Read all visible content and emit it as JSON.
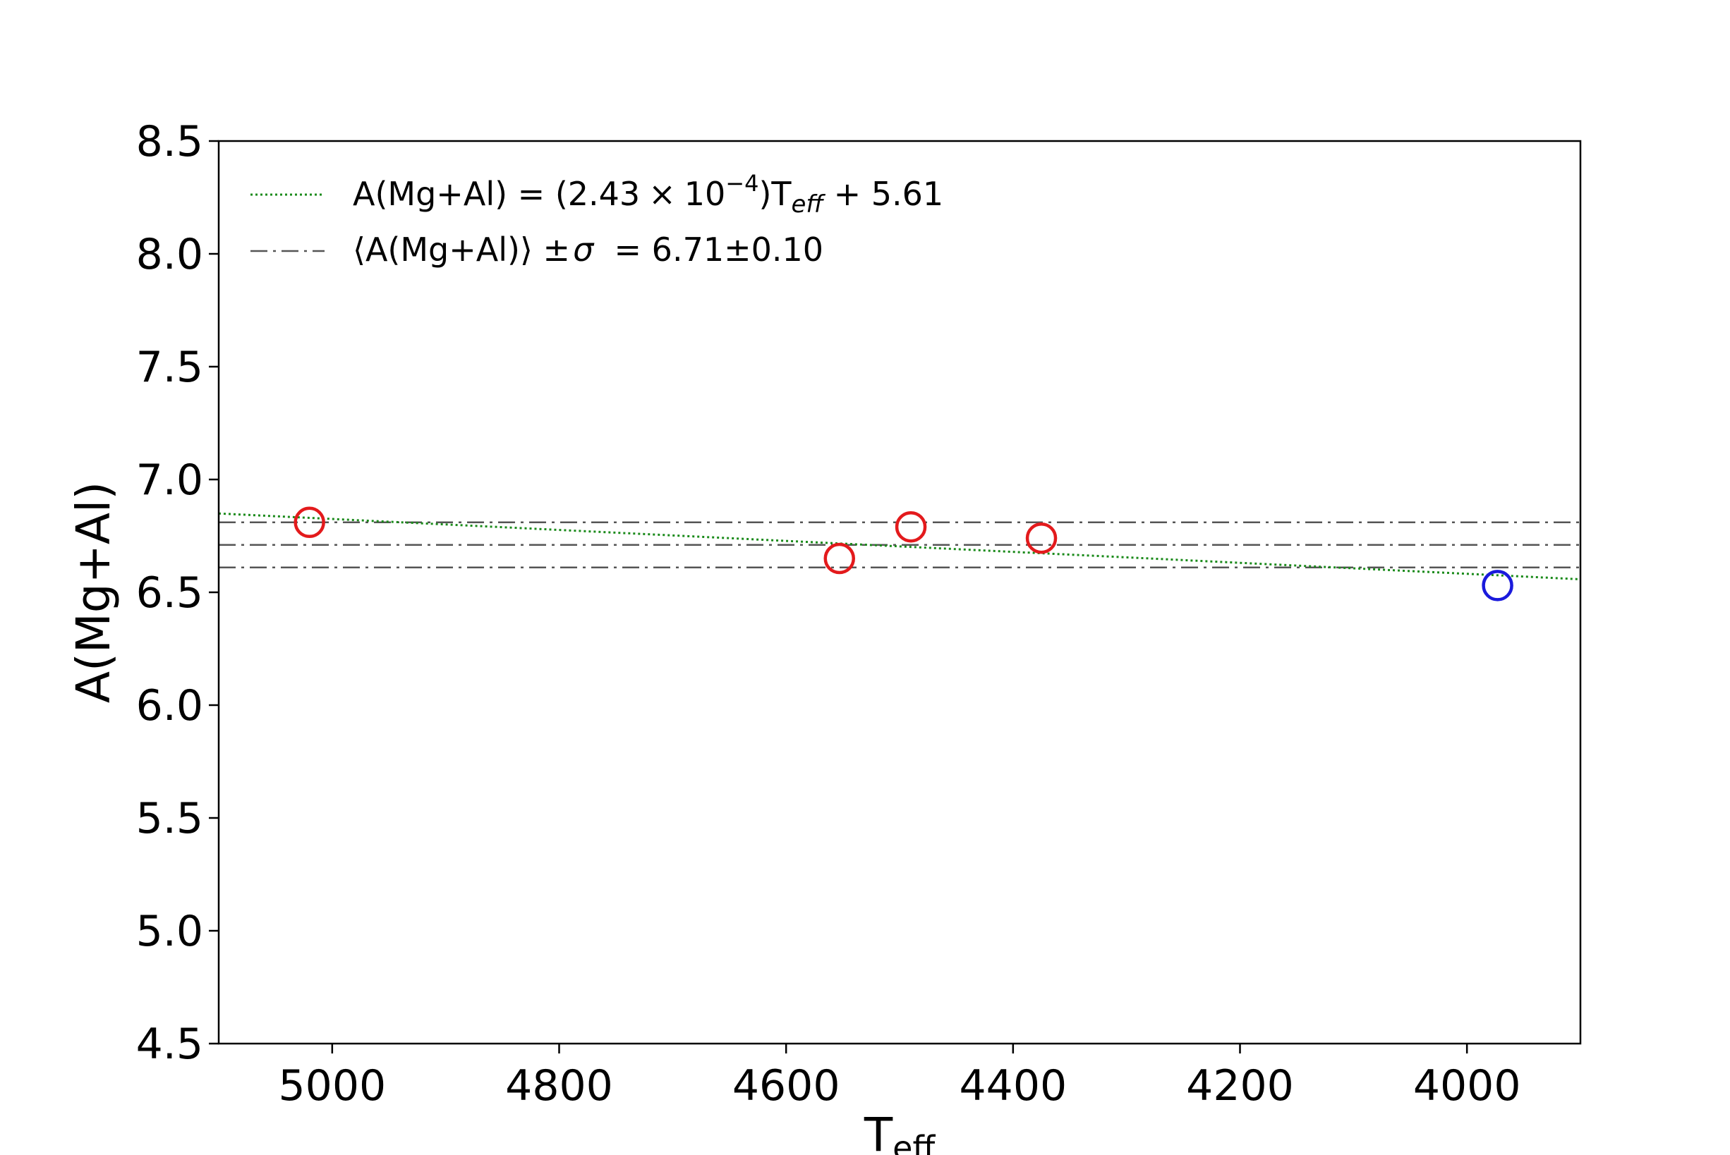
{
  "chart_data": {
    "type": "scatter",
    "xlabel": {
      "main": "T",
      "sub": "eff"
    },
    "ylabel": "A(Mg+Al)",
    "xlim": [
      5100,
      3900
    ],
    "ylim": [
      4.5,
      8.5
    ],
    "x_reversed": true,
    "xticks": [
      5000,
      4800,
      4600,
      4400,
      4200,
      4000
    ],
    "xtick_labels": [
      "5000",
      "4800",
      "4600",
      "4400",
      "4200",
      "4000"
    ],
    "yticks": [
      4.5,
      5.0,
      5.5,
      6.0,
      6.5,
      7.0,
      7.5,
      8.0,
      8.5
    ],
    "ytick_labels": [
      "4.5",
      "5.0",
      "5.5",
      "6.0",
      "6.5",
      "7.0",
      "7.5",
      "8.0",
      "8.5"
    ],
    "grid": false,
    "legend_position": "top-left",
    "series": [
      {
        "marker": "open-circle",
        "color": "#e31a1c",
        "points": [
          {
            "x": 5020,
            "y": 6.81
          },
          {
            "x": 4553,
            "y": 6.65
          },
          {
            "x": 4490,
            "y": 6.79
          },
          {
            "x": 4375,
            "y": 6.74
          }
        ]
      },
      {
        "marker": "open-circle",
        "color": "#1a1adc",
        "points": [
          {
            "x": 3973,
            "y": 6.53
          }
        ]
      }
    ],
    "fit_line": {
      "slope": 0.000243,
      "intercept": 5.61,
      "color": "#1a8a1a",
      "style": "dotted",
      "legend": {
        "prefix": "A(Mg+Al) = (2.43",
        "times": "×",
        "ten": "10",
        "exponent": "−4",
        "close": ")T",
        "sub": "eff",
        "suffix": " + 5.61"
      }
    },
    "mean_lines": {
      "mean": 6.71,
      "sigma": 0.1,
      "values": [
        6.81,
        6.71,
        6.61
      ],
      "color": "#555555",
      "style": "dash-dot",
      "legend": {
        "open": "⟨A(Mg+Al)⟩ ±",
        "sigma": "σ",
        "rest": "  = 6.71±0.10"
      }
    }
  }
}
